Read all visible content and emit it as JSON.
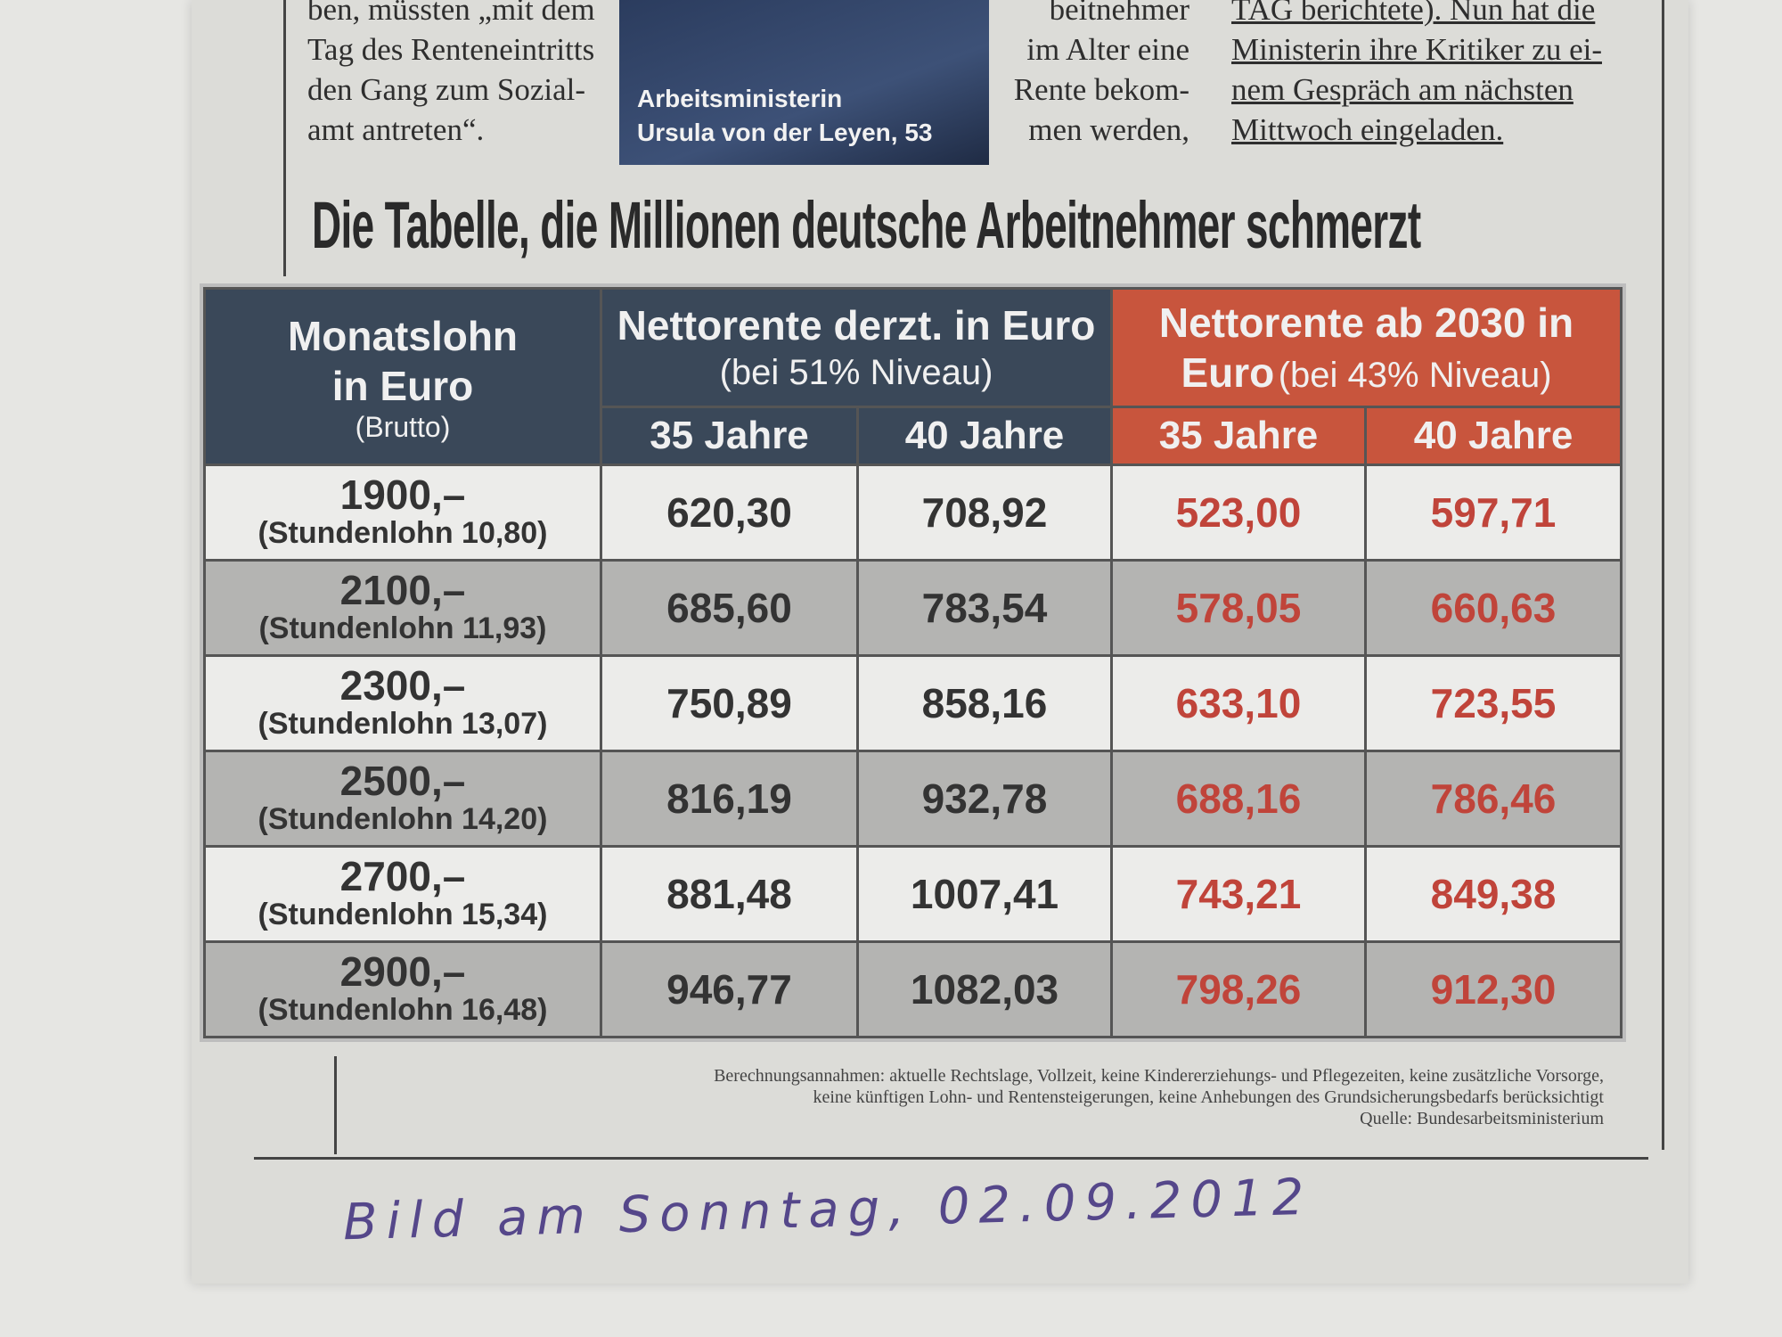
{
  "article": {
    "col1": [
      "ben, müssten „mit dem",
      "Tag des Renteneintritts",
      "den Gang zum Sozial-",
      "amt antreten“."
    ],
    "caption": [
      "Arbeitsministerin",
      "Ursula von der Leyen, 53"
    ],
    "col3": [
      "beitnehmer",
      "im Alter eine",
      "Rente bekom-",
      "men werden,"
    ],
    "col4": [
      "TAG berichtete). Nun hat die",
      "Ministerin ihre Kritiker zu ei-",
      "nem Gespräch am nächsten",
      "Mittwoch eingeladen."
    ]
  },
  "headline": "Die Tabelle, die Millionen deutsche Arbeitnehmer schmerzt",
  "table": {
    "header": {
      "col0": [
        "Monatslohn",
        "in Euro",
        "(Brutto)"
      ],
      "group1": [
        "Nettorente derzt. in Euro",
        "(bei 51% Niveau)"
      ],
      "group2": [
        "Nettorente ab 2030 in",
        "Euro",
        "(bei 43% Niveau)"
      ],
      "sub": [
        "35 Jahre",
        "40 Jahre",
        "35 Jahre",
        "40 Jahre"
      ]
    },
    "rows": [
      [
        "1900,–",
        "(Stundenlohn 10,80)",
        "620,30",
        "708,92",
        "523,00",
        "597,71"
      ],
      [
        "2100,–",
        "(Stundenlohn 11,93)",
        "685,60",
        "783,54",
        "578,05",
        "660,63"
      ],
      [
        "2300,–",
        "(Stundenlohn 13,07)",
        "750,89",
        "858,16",
        "633,10",
        "723,55"
      ],
      [
        "2500,–",
        "(Stundenlohn 14,20)",
        "816,19",
        "932,78",
        "688,16",
        "786,46"
      ],
      [
        "2700,–",
        "(Stundenlohn 15,34)",
        "881,48",
        "1007,41",
        "743,21",
        "849,38"
      ],
      [
        "2900,–",
        "(Stundenlohn 16,48)",
        "946,77",
        "1082,03",
        "798,26",
        "912,30"
      ]
    ]
  },
  "footnote": [
    "Berechnungsannahmen: aktuelle Rechtslage, Vollzeit, keine Kindererziehungs- und Pflegezeiten, keine zusätzliche Vorsorge,",
    "keine künftigen Lohn- und Rentensteigerungen, keine Anhebungen des Grundsicherungsbedarfs berücksichtigt",
    "Quelle: Bundesarbeitsministerium"
  ],
  "handwriting": "Bild am Sonntag, 02.09.2012"
}
